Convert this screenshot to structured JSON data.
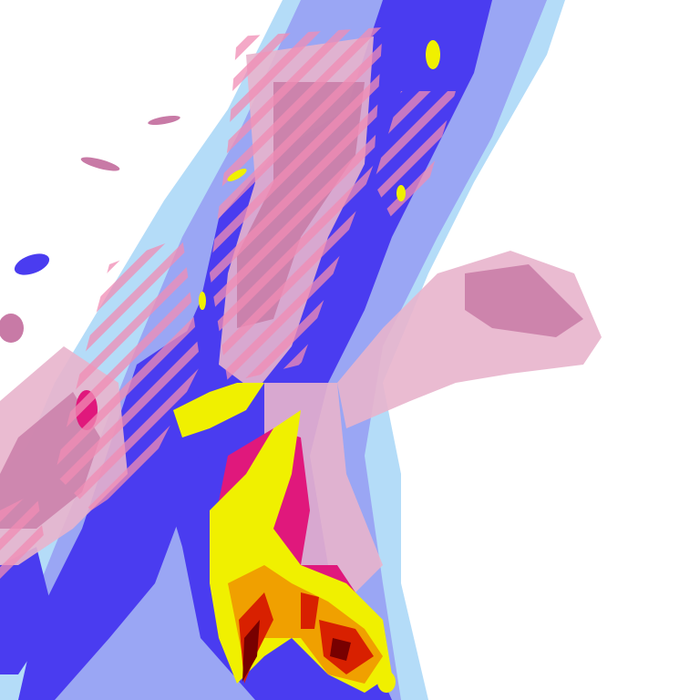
{
  "map": {
    "type": "precipitation-radar",
    "background": "#ffffff",
    "colors": {
      "light_rain": "#b4dcf8",
      "rain": "#9aa6f4",
      "moderate": "#4a3cf0",
      "mixed": "#e8b4cc",
      "mixed_heavy": "#c87aa6",
      "snow_core": "#e0187c",
      "heavy": "#f0f000",
      "very_heavy": "#f0a000",
      "intense": "#d82000",
      "extreme": "#780000",
      "hatch": "#f08cb4"
    }
  }
}
